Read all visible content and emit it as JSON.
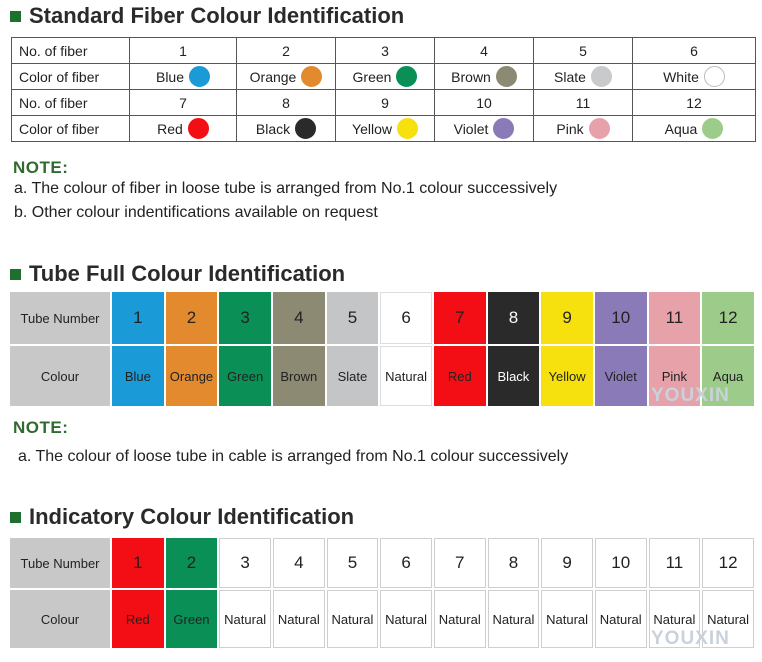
{
  "fiber_section": {
    "heading": "Standard  Fiber Colour Identification",
    "row_label_number": "No. of fiber",
    "row_label_color": "Color of fiber",
    "rows": [
      [
        {
          "num": "1",
          "name": "Blue",
          "color": "#1a9ad6"
        },
        {
          "num": "2",
          "name": "Orange",
          "color": "#e38a2e"
        },
        {
          "num": "3",
          "name": "Green",
          "color": "#0a8f57"
        },
        {
          "num": "4",
          "name": "Brown",
          "color": "#8c8a72"
        },
        {
          "num": "5",
          "name": "Slate",
          "color": "#c8cacb"
        },
        {
          "num": "6",
          "name": "White",
          "color": "#ffffff"
        }
      ],
      [
        {
          "num": "7",
          "name": "Red",
          "color": "#f20e14"
        },
        {
          "num": "8",
          "name": "Black",
          "color": "#2a2a2a"
        },
        {
          "num": "9",
          "name": "Yellow",
          "color": "#f6e10e"
        },
        {
          "num": "10",
          "name": "Violet",
          "color": "#8b7ab8"
        },
        {
          "num": "11",
          "name": "Pink",
          "color": "#e7a1a9"
        },
        {
          "num": "12",
          "name": "Aqua",
          "color": "#9dcc8a"
        }
      ]
    ],
    "note_label": "NOTE:",
    "notes": [
      "a. The colour of fiber in loose tube is arranged from No.1 colour  successively",
      "b. Other colour indentifications available on request"
    ]
  },
  "tube_section": {
    "heading": "Tube Full Colour Identification",
    "label_number": "Tube Number",
    "label_colour": "Colour",
    "items": [
      {
        "num": "1",
        "name": "Blue",
        "color": "#1a9ad6",
        "text": "#222222"
      },
      {
        "num": "2",
        "name": "Orange",
        "color": "#e38a2e",
        "text": "#222222"
      },
      {
        "num": "3",
        "name": "Green",
        "color": "#0a8f57",
        "text": "#222222"
      },
      {
        "num": "4",
        "name": "Brown",
        "color": "#8c8a72",
        "text": "#222222"
      },
      {
        "num": "5",
        "name": "Slate",
        "color": "#c3c5c6",
        "text": "#222222"
      },
      {
        "num": "6",
        "name": "Natural",
        "color": "#ffffff",
        "text": "#222222"
      },
      {
        "num": "7",
        "name": "Red",
        "color": "#f20e14",
        "text": "#222222"
      },
      {
        "num": "8",
        "name": "Black",
        "color": "#2a2a2a",
        "text": "#ffffff"
      },
      {
        "num": "9",
        "name": "Yellow",
        "color": "#f6e10e",
        "text": "#222222"
      },
      {
        "num": "10",
        "name": "Violet",
        "color": "#8b7ab8",
        "text": "#222222"
      },
      {
        "num": "11",
        "name": "Pink",
        "color": "#e7a1a9",
        "text": "#222222"
      },
      {
        "num": "12",
        "name": "Aqua",
        "color": "#9dcc8a",
        "text": "#222222"
      }
    ],
    "note_label": "NOTE:",
    "notes": [
      "a. The colour of loose tube in cable is arranged from No.1 colour  successively"
    ],
    "watermark": "YOUXIN"
  },
  "indicatory_section": {
    "heading": "Indicatory Colour Identification",
    "label_number": "Tube Number",
    "label_colour": "Colour",
    "items": [
      {
        "num": "1",
        "name": "Red",
        "color": "#f20e14",
        "text": "#222222"
      },
      {
        "num": "2",
        "name": "Green",
        "color": "#0a8f57",
        "text": "#222222"
      },
      {
        "num": "3",
        "name": "Natural",
        "color": "#ffffff",
        "text": "#222222"
      },
      {
        "num": "4",
        "name": "Natural",
        "color": "#ffffff",
        "text": "#222222"
      },
      {
        "num": "5",
        "name": "Natural",
        "color": "#ffffff",
        "text": "#222222"
      },
      {
        "num": "6",
        "name": "Natural",
        "color": "#ffffff",
        "text": "#222222"
      },
      {
        "num": "7",
        "name": "Natural",
        "color": "#ffffff",
        "text": "#222222"
      },
      {
        "num": "8",
        "name": "Natural",
        "color": "#ffffff",
        "text": "#222222"
      },
      {
        "num": "9",
        "name": "Natural",
        "color": "#ffffff",
        "text": "#222222"
      },
      {
        "num": "10",
        "name": "Natural",
        "color": "#ffffff",
        "text": "#222222"
      },
      {
        "num": "11",
        "name": "Natural",
        "color": "#ffffff",
        "text": "#222222"
      },
      {
        "num": "12",
        "name": "Natural",
        "color": "#ffffff",
        "text": "#222222"
      }
    ],
    "watermark": "YOUXIN"
  }
}
